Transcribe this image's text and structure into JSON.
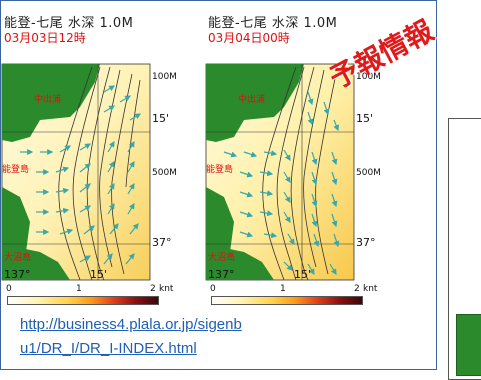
{
  "maps": [
    {
      "title": "能登-七尾 水深 1.0M",
      "date": "03月03日12時",
      "labels": {
        "place_top": "中出浦",
        "place_mid": "能登島",
        "place_bot": "大沼島",
        "depth_100": "100M",
        "depth_500": "500M",
        "lat_37": "37°",
        "lat_15": "15'",
        "lon_137": "137°",
        "lon_15": "15'"
      }
    },
    {
      "title": "能登-七尾 水深 1.0M",
      "date": "03月04日00時",
      "labels": {
        "place_top": "中出浦",
        "place_mid": "能登島",
        "place_bot": "大沼島",
        "depth_100": "100M",
        "depth_500": "500M",
        "lat_37": "37°",
        "lat_15": "15'",
        "lon_137": "137°",
        "lon_15": "15'"
      }
    }
  ],
  "scale": {
    "min": "0",
    "mid": "1",
    "max": "2",
    "unit": "knt"
  },
  "stamp": "予報情報",
  "link": {
    "line1": "http://business4.plala.or.jp/sigenb",
    "line2": "u1/DR_I/DR_I-INDEX.html"
  },
  "colors": {
    "land": "#2b8a2b",
    "sea_low": "#fff6c2",
    "sea_high": "#f7c24a",
    "arrow": "#3aa8a8",
    "text_red": "#e01010",
    "link": "#1f5fb6"
  }
}
